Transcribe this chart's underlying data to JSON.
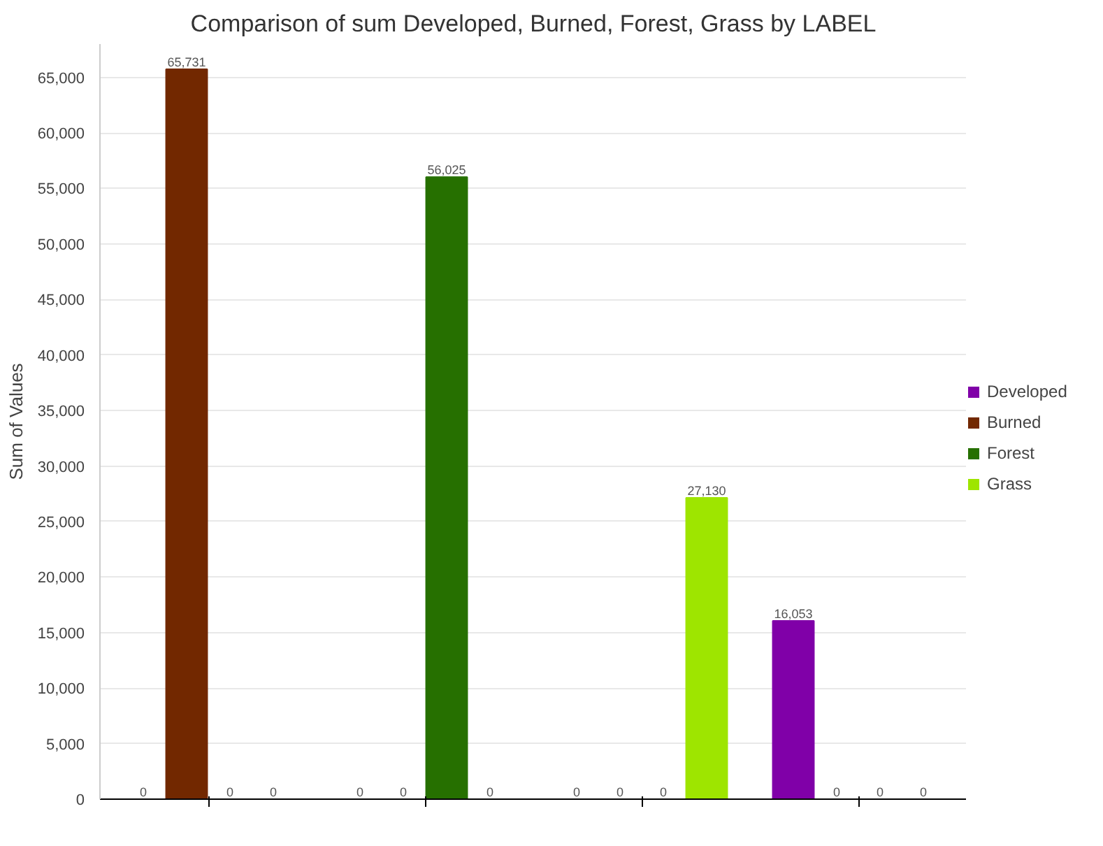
{
  "chart_data": {
    "type": "bar",
    "title": "Comparison of sum Developed, Burned, Forest, Grass by LABEL",
    "ylabel": "Sum of Values",
    "categories": [
      null,
      null,
      null,
      null
    ],
    "series": [
      {
        "name": "Developed",
        "color": "#8000a8",
        "values": [
          0,
          0,
          0,
          16053
        ],
        "value_labels": [
          "0",
          "0",
          "0",
          "16,053"
        ]
      },
      {
        "name": "Burned",
        "color": "#722800",
        "values": [
          65731,
          0,
          0,
          0
        ],
        "value_labels": [
          "65,731",
          "0",
          "0",
          "0"
        ]
      },
      {
        "name": "Forest",
        "color": "#267000",
        "values": [
          0,
          56025,
          0,
          0
        ],
        "value_labels": [
          "0",
          "56,025",
          "0",
          "0"
        ]
      },
      {
        "name": "Grass",
        "color": "#9ee500",
        "values": [
          0,
          0,
          27130,
          0
        ],
        "value_labels": [
          "0",
          "0",
          "27,130",
          "0"
        ]
      }
    ],
    "ylim": [
      0,
      68000
    ],
    "yticks": [
      {
        "value": 0,
        "label": "0"
      },
      {
        "value": 5000,
        "label": "5,000"
      },
      {
        "value": 10000,
        "label": "10,000"
      },
      {
        "value": 15000,
        "label": "15,000"
      },
      {
        "value": 20000,
        "label": "20,000"
      },
      {
        "value": 25000,
        "label": "25,000"
      },
      {
        "value": 30000,
        "label": "30,000"
      },
      {
        "value": 35000,
        "label": "35,000"
      },
      {
        "value": 40000,
        "label": "40,000"
      },
      {
        "value": 45000,
        "label": "45,000"
      },
      {
        "value": 50000,
        "label": "50,000"
      },
      {
        "value": 55000,
        "label": "55,000"
      },
      {
        "value": 60000,
        "label": "60,000"
      },
      {
        "value": 65000,
        "label": "65,000"
      }
    ],
    "grid": "y",
    "legend": "right"
  }
}
